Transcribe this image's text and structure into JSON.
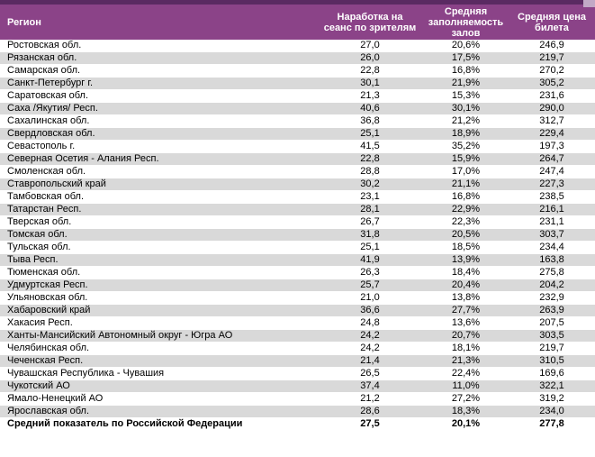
{
  "colors": {
    "header_bg": "#8b4388",
    "top_strip": "#5a2a62",
    "corner_accent": "#c2a9c6",
    "alt_row_bg": "#d9d9d9",
    "text": "#000000",
    "header_text": "#ffffff"
  },
  "table": {
    "columns": [
      "Регион",
      "Наработка на\nсеанс по зрителям",
      "Средняя\nзаполняемость\nзалов",
      "Средняя цена\nбилета"
    ],
    "rows": [
      [
        "Ростовская обл.",
        "27,0",
        "20,6%",
        "246,9"
      ],
      [
        "Рязанская обл.",
        "26,0",
        "17,5%",
        "219,7"
      ],
      [
        "Самарская обл.",
        "22,8",
        "16,8%",
        "270,2"
      ],
      [
        "Санкт-Петербург г.",
        "30,1",
        "21,9%",
        "305,2"
      ],
      [
        "Саратовская обл.",
        "21,3",
        "15,3%",
        "231,6"
      ],
      [
        "Саха /Якутия/ Респ.",
        "40,6",
        "30,1%",
        "290,0"
      ],
      [
        "Сахалинская обл.",
        "36,8",
        "21,2%",
        "312,7"
      ],
      [
        "Свердловская обл.",
        "25,1",
        "18,9%",
        "229,4"
      ],
      [
        "Севастополь г.",
        "41,5",
        "35,2%",
        "197,3"
      ],
      [
        "Северная Осетия - Алания Респ.",
        "22,8",
        "15,9%",
        "264,7"
      ],
      [
        "Смоленская обл.",
        "28,8",
        "17,0%",
        "247,4"
      ],
      [
        "Ставропольский край",
        "30,2",
        "21,1%",
        "227,3"
      ],
      [
        "Тамбовская обл.",
        "23,1",
        "16,8%",
        "238,5"
      ],
      [
        "Татарстан Респ.",
        "28,1",
        "22,9%",
        "216,1"
      ],
      [
        "Тверская обл.",
        "26,7",
        "22,3%",
        "231,1"
      ],
      [
        "Томская обл.",
        "31,8",
        "20,5%",
        "303,7"
      ],
      [
        "Тульская обл.",
        "25,1",
        "18,5%",
        "234,4"
      ],
      [
        "Тыва Респ.",
        "41,9",
        "13,9%",
        "163,8"
      ],
      [
        "Тюменская обл.",
        "26,3",
        "18,4%",
        "275,8"
      ],
      [
        "Удмуртская Респ.",
        "25,7",
        "20,4%",
        "204,2"
      ],
      [
        "Ульяновская обл.",
        "21,0",
        "13,8%",
        "232,9"
      ],
      [
        "Хабаровский край",
        "36,6",
        "27,7%",
        "263,9"
      ],
      [
        "Хакасия Респ.",
        "24,8",
        "13,6%",
        "207,5"
      ],
      [
        "Ханты-Мансийский Автономный округ - Югра АО",
        "24,2",
        "20,7%",
        "303,5"
      ],
      [
        "Челябинская обл.",
        "24,2",
        "18,1%",
        "219,7"
      ],
      [
        "Чеченская Респ.",
        "21,4",
        "21,3%",
        "310,5"
      ],
      [
        "Чувашская Республика - Чувашия",
        "26,5",
        "22,4%",
        "169,6"
      ],
      [
        "Чукотский АО",
        "37,4",
        "11,0%",
        "322,1"
      ],
      [
        "Ямало-Ненецкий АО",
        "21,2",
        "27,2%",
        "319,2"
      ],
      [
        "Ярославская обл.",
        "28,6",
        "18,3%",
        "234,0"
      ]
    ],
    "summary_row": [
      "Средний показатель по Российской Федерации",
      "27,5",
      "20,1%",
      "277,8"
    ]
  }
}
